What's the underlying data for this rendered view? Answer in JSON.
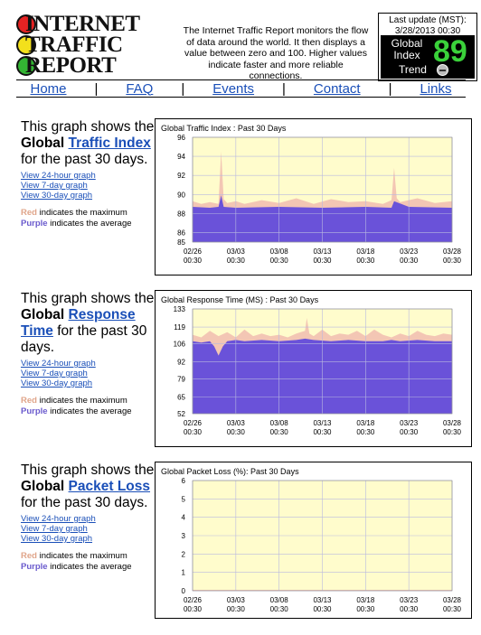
{
  "header": {
    "logo_lines": [
      "INTERNET",
      "TRAFFIC",
      "REPORT"
    ],
    "description": "The Internet Traffic Report monitors the flow of data around the world. It then displays a value between zero and 100. Higher values indicate faster and more reliable connections.",
    "last_update_label": "Last update (MST):",
    "last_update_value": "3/28/2013 00:30",
    "global_index_label": "Global Index",
    "global_index_value": "89",
    "trend_label": "Trend",
    "colors": {
      "index_value": "#3ad13a",
      "panel_bg": "#000000"
    }
  },
  "nav": {
    "items": [
      "Home",
      "FAQ",
      "Events",
      "Contact",
      "Links"
    ],
    "separator": "|"
  },
  "sections": [
    {
      "lead_prefix": "This graph shows the",
      "lead_bold": "Global",
      "lead_link": "Traffic Index",
      "lead_suffix": "for the past 30 days."
    },
    {
      "lead_prefix": "This graph shows the",
      "lead_bold": "Global",
      "lead_link": "Response Time",
      "lead_suffix": "for the past 30 days."
    },
    {
      "lead_prefix": "This graph shows the",
      "lead_bold": "Global",
      "lead_link": "Packet Loss",
      "lead_suffix": "for the past 30 days."
    }
  ],
  "graph_links": [
    "View 24-hour graph",
    "View 7-day graph",
    "View 30-day graph"
  ],
  "legend": {
    "red_word": "Red",
    "red_text": "indicates the maximum",
    "purple_word": "Purple",
    "purple_text": "indicates the average"
  },
  "chart_data": [
    {
      "type": "area",
      "title": "Global Traffic Index : Past 30 Days",
      "xlabel": "",
      "ylabel": "",
      "ylim": [
        85,
        96
      ],
      "yticks": [
        85,
        86,
        88,
        90,
        92,
        94,
        96
      ],
      "xticks": [
        "02/26\n00:30",
        "03/03\n00:30",
        "03/08\n00:30",
        "03/13\n00:30",
        "03/18\n00:30",
        "03/23\n00:30",
        "03/28\n00:30"
      ],
      "xrange_days": [
        0,
        30
      ],
      "series": [
        {
          "name": "Red",
          "color": "#f3c6b4",
          "x": [
            0,
            1,
            2,
            3,
            3.3,
            3.6,
            4,
            5,
            6,
            8,
            10,
            12,
            14,
            16,
            18,
            20,
            22,
            23,
            23.3,
            23.6,
            24,
            26,
            28,
            30
          ],
          "values": [
            89.3,
            89.0,
            89.2,
            89.0,
            94.5,
            89.5,
            89.1,
            89.3,
            89.0,
            89.4,
            89.1,
            89.6,
            89.0,
            89.5,
            89.2,
            89.3,
            89.0,
            89.4,
            92.8,
            89.6,
            89.2,
            89.6,
            89.1,
            89.3
          ]
        },
        {
          "name": "Purple",
          "color": "#6a52d9",
          "x": [
            0,
            2,
            3,
            3.3,
            3.6,
            5,
            10,
            15,
            20,
            23,
            23.3,
            25,
            30
          ],
          "values": [
            88.7,
            88.6,
            88.7,
            89.9,
            88.7,
            88.6,
            88.7,
            88.6,
            88.7,
            88.6,
            89.3,
            88.7,
            88.6
          ]
        }
      ]
    },
    {
      "type": "area",
      "title": "Global Response Time (MS) : Past 30 Days",
      "xlabel": "",
      "ylabel": "",
      "ylim": [
        52,
        133
      ],
      "yticks": [
        52,
        65,
        79,
        92,
        106,
        119,
        133
      ],
      "xticks": [
        "02/26\n00:30",
        "03/03\n00:30",
        "03/08\n00:30",
        "03/13\n00:30",
        "03/18\n00:30",
        "03/23\n00:30",
        "03/28\n00:30"
      ],
      "xrange_days": [
        0,
        30
      ],
      "series": [
        {
          "name": "Red",
          "color": "#f3c6b4",
          "x": [
            0,
            1,
            2,
            3,
            4,
            5,
            6,
            7,
            8,
            9,
            10,
            11,
            12,
            13,
            13.2,
            13.5,
            14,
            15,
            16,
            17,
            18,
            19,
            20,
            21,
            22,
            23,
            24,
            25,
            26,
            27,
            28,
            29,
            30
          ],
          "values": [
            113,
            111,
            116,
            112,
            115,
            111,
            117,
            112,
            114,
            112,
            113,
            111,
            114,
            116,
            126,
            114,
            112,
            117,
            112,
            114,
            113,
            116,
            112,
            117,
            113,
            111,
            114,
            112,
            116,
            113,
            112,
            114,
            113
          ]
        },
        {
          "name": "Purple",
          "color": "#6a52d9",
          "x": [
            0,
            1,
            2,
            2.5,
            3,
            3.5,
            4,
            5,
            6,
            8,
            10,
            12,
            13,
            14,
            16,
            18,
            20,
            22,
            23,
            24,
            26,
            28,
            30
          ],
          "values": [
            108,
            107,
            108,
            104,
            97,
            104,
            108,
            109,
            108,
            109,
            108,
            109,
            110,
            109,
            108,
            109,
            108,
            108,
            109,
            108,
            109,
            108,
            108
          ]
        }
      ]
    },
    {
      "type": "area",
      "title": "Global Packet Loss (%): Past 30 Days",
      "xlabel": "",
      "ylabel": "",
      "ylim": [
        0,
        6
      ],
      "yticks": [
        0,
        1,
        2,
        3,
        4,
        5,
        6
      ],
      "xticks": [
        "02/26\n00:30",
        "03/03\n00:30",
        "03/08\n00:30",
        "03/13\n00:30",
        "03/18\n00:30",
        "03/23\n00:30",
        "03/28\n00:30"
      ],
      "xrange_days": [
        0,
        30
      ],
      "series": [
        {
          "name": "Red",
          "color": "#f3c6b4",
          "x": [
            0,
            30
          ],
          "values": [
            0.05,
            0.05
          ]
        },
        {
          "name": "Purple",
          "color": "#6a52d9",
          "x": [
            0,
            30
          ],
          "values": [
            0,
            0
          ]
        }
      ]
    }
  ]
}
